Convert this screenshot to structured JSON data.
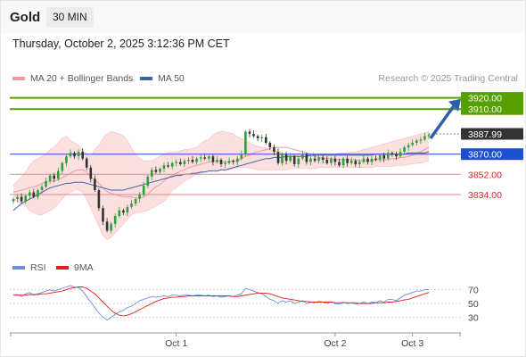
{
  "header": {
    "instrument": "Gold",
    "timeframe": "30 MIN",
    "datetime": "Thursday, October 2, 2025 3:12:36 PM CET"
  },
  "legend": {
    "ma20": "MA 20 + Bollinger Bands",
    "ma50": "MA 50",
    "rsi": "RSI",
    "ma9": "9MA"
  },
  "credit": "Research © 2025 Trading Central",
  "colors": {
    "up_candle": "#2e9e3e",
    "down_candle": "#333333",
    "bollinger_fill": "#fcd9d9",
    "ma20": "#f19a9a",
    "ma50": "#3a63a8",
    "resistance": "#55a000",
    "pivot": "#1f4fd1",
    "support": "#e08a8a",
    "support_text": "#e02020",
    "current_price_bg": "#333333",
    "arrow": "#2e5fa8",
    "rsi": "#6d8fd6",
    "rsi_ma9": "#e02020"
  },
  "chart_data": [
    {
      "type": "candlestick",
      "x_tick_labels": [
        "Oct 1",
        "Oct 2",
        "Oct 3"
      ],
      "y_range": [
        3792,
        3930
      ],
      "current_price": "3887.99",
      "levels": [
        {
          "label": "3920.00",
          "value": 3920.0,
          "kind": "resistance"
        },
        {
          "label": "3910.00",
          "value": 3910.0,
          "kind": "resistance"
        },
        {
          "label": "3870.00",
          "value": 3870.0,
          "kind": "pivot"
        },
        {
          "label": "3852.00",
          "value": 3852.0,
          "kind": "support"
        },
        {
          "label": "3834.00",
          "value": 3834.0,
          "kind": "support"
        }
      ],
      "close": [
        3830,
        3832,
        3828,
        3833,
        3836,
        3832,
        3838,
        3841,
        3846,
        3851,
        3848,
        3855,
        3862,
        3868,
        3871,
        3868,
        3872,
        3866,
        3858,
        3848,
        3838,
        3822,
        3810,
        3802,
        3808,
        3815,
        3820,
        3818,
        3823,
        3826,
        3830,
        3834,
        3842,
        3850,
        3856,
        3854,
        3857,
        3860,
        3859,
        3862,
        3863,
        3861,
        3864,
        3865,
        3863,
        3866,
        3867,
        3866,
        3868,
        3863,
        3865,
        3861,
        3862,
        3864,
        3863,
        3866,
        3870,
        3890,
        3888,
        3886,
        3884,
        3885,
        3880,
        3876,
        3872,
        3862,
        3870,
        3864,
        3868,
        3861,
        3866,
        3870,
        3863,
        3866,
        3864,
        3867,
        3865,
        3862,
        3866,
        3863,
        3860,
        3866,
        3862,
        3864,
        3861,
        3863,
        3866,
        3863,
        3866,
        3865,
        3869,
        3866,
        3871,
        3870,
        3868,
        3872,
        3876,
        3878,
        3880,
        3882,
        3883,
        3886,
        3887
      ],
      "ma20": [
        3836,
        3837,
        3838,
        3839,
        3840,
        3841,
        3842,
        3844,
        3845,
        3846,
        3846,
        3847,
        3849,
        3851,
        3853,
        3855,
        3856,
        3856,
        3854,
        3850,
        3847,
        3844,
        3840,
        3837,
        3835,
        3834,
        3833,
        3832,
        3832,
        3832,
        3831,
        3831,
        3832,
        3834,
        3838,
        3841,
        3843,
        3846,
        3849,
        3851,
        3853,
        3855,
        3856,
        3858,
        3859,
        3860,
        3861,
        3862,
        3863,
        3863,
        3864,
        3863,
        3863,
        3863,
        3864,
        3864,
        3866,
        3868,
        3869,
        3871,
        3872,
        3873,
        3874,
        3875,
        3876,
        3876,
        3876,
        3876,
        3875,
        3874,
        3873,
        3872,
        3871,
        3869,
        3868,
        3867,
        3866,
        3866,
        3866,
        3865,
        3865,
        3865,
        3865,
        3865,
        3865,
        3864,
        3864,
        3864,
        3864,
        3865,
        3865,
        3865,
        3865,
        3866,
        3866,
        3867,
        3867,
        3868,
        3869,
        3871,
        3872,
        3874,
        3876
      ],
      "bb_upper": [
        3842,
        3846,
        3850,
        3854,
        3860,
        3864,
        3866,
        3868,
        3870,
        3874,
        3876,
        3880,
        3884,
        3886,
        3882,
        3880,
        3878,
        3874,
        3870,
        3868,
        3874,
        3878,
        3884,
        3888,
        3890,
        3889,
        3888,
        3886,
        3882,
        3876,
        3870,
        3866,
        3864,
        3864,
        3864,
        3866,
        3868,
        3870,
        3871,
        3872,
        3872,
        3873,
        3874,
        3874,
        3875,
        3876,
        3879,
        3882,
        3883,
        3887,
        3889,
        3890,
        3890,
        3889,
        3888,
        3885,
        3884,
        3882,
        3880,
        3878,
        3877,
        3876,
        3875,
        3874,
        3873,
        3872,
        3871,
        3870,
        3870,
        3869,
        3869,
        3869,
        3869,
        3869,
        3870,
        3870,
        3870,
        3870,
        3870,
        3870,
        3871,
        3871,
        3871,
        3872,
        3872,
        3873,
        3874,
        3875,
        3876,
        3877,
        3878,
        3879,
        3880,
        3881,
        3882,
        3883,
        3884,
        3885,
        3886,
        3887,
        3888,
        3889,
        3890
      ],
      "bb_lower": [
        3830,
        3828,
        3826,
        3824,
        3820,
        3818,
        3816,
        3816,
        3818,
        3820,
        3822,
        3826,
        3830,
        3834,
        3836,
        3838,
        3838,
        3836,
        3830,
        3822,
        3814,
        3806,
        3798,
        3794,
        3796,
        3800,
        3804,
        3808,
        3812,
        3816,
        3818,
        3818,
        3819,
        3820,
        3822,
        3824,
        3826,
        3828,
        3832,
        3838,
        3840,
        3843,
        3846,
        3848,
        3850,
        3852,
        3853,
        3854,
        3855,
        3856,
        3856,
        3856,
        3855,
        3856,
        3857,
        3858,
        3858,
        3858,
        3857,
        3857,
        3856,
        3856,
        3856,
        3856,
        3856,
        3856,
        3856,
        3856,
        3857,
        3857,
        3857,
        3857,
        3857,
        3857,
        3857,
        3858,
        3858,
        3858,
        3858,
        3858,
        3858,
        3858,
        3858,
        3858,
        3858,
        3858,
        3858,
        3858,
        3858,
        3859,
        3859,
        3859,
        3859,
        3859,
        3860,
        3860,
        3860,
        3861,
        3861,
        3862,
        3862,
        3863,
        3864
      ],
      "ma50": [
        3820,
        3823,
        3826,
        3828,
        3830,
        3832,
        3834,
        3836,
        3838,
        3840,
        3841,
        3842,
        3843,
        3844,
        3844,
        3845,
        3845,
        3845,
        3844,
        3843,
        3842,
        3841,
        3840,
        3839,
        3838,
        3838,
        3838,
        3838,
        3839,
        3840,
        3841,
        3842,
        3843,
        3844,
        3845,
        3846,
        3847,
        3848,
        3849,
        3850,
        3851,
        3851,
        3852,
        3852,
        3853,
        3853,
        3854,
        3854,
        3855,
        3855,
        3855,
        3856,
        3856,
        3857,
        3858,
        3859,
        3860,
        3861,
        3862,
        3863,
        3864,
        3865,
        3866,
        3866,
        3867,
        3867,
        3867,
        3868,
        3868,
        3868,
        3868,
        3868,
        3868,
        3869,
        3869,
        3869,
        3869,
        3869,
        3869,
        3869,
        3869,
        3869,
        3869,
        3869,
        3869,
        3869,
        3869,
        3869,
        3869,
        3870,
        3870,
        3870,
        3870,
        3870,
        3870,
        3870,
        3870,
        3871,
        3871,
        3871,
        3871,
        3871,
        3872
      ]
    },
    {
      "type": "line",
      "name": "RSI",
      "y_range": [
        15,
        85
      ],
      "y_tick_labels": [
        "70",
        "50",
        "30"
      ],
      "rsi": [
        62,
        63,
        60,
        64,
        66,
        62,
        64,
        66,
        68,
        70,
        68,
        70,
        72,
        74,
        76,
        74,
        73,
        68,
        60,
        52,
        44,
        36,
        30,
        26,
        30,
        34,
        38,
        40,
        44,
        46,
        50,
        54,
        56,
        58,
        60,
        59,
        60,
        61,
        60,
        62,
        62,
        61,
        62,
        62,
        61,
        62,
        62,
        61,
        62,
        60,
        61,
        59,
        60,
        61,
        60,
        62,
        64,
        72,
        70,
        68,
        66,
        64,
        60,
        56,
        54,
        50,
        54,
        52,
        54,
        50,
        52,
        54,
        50,
        52,
        51,
        53,
        52,
        50,
        52,
        50,
        49,
        52,
        50,
        51,
        49,
        50,
        52,
        50,
        52,
        51,
        54,
        52,
        56,
        56,
        54,
        58,
        62,
        64,
        66,
        68,
        68,
        70,
        70
      ],
      "rsi_ma9": [
        62,
        62,
        62,
        62,
        63,
        63,
        63,
        64,
        64,
        65,
        66,
        67,
        68,
        70,
        72,
        73,
        74,
        74,
        72,
        68,
        64,
        58,
        52,
        46,
        40,
        36,
        33,
        32,
        33,
        35,
        38,
        41,
        44,
        47,
        50,
        53,
        55,
        57,
        58,
        59,
        59,
        60,
        60,
        61,
        61,
        61,
        61,
        61,
        61,
        61,
        61,
        61,
        61,
        61,
        60,
        60,
        61,
        62,
        63,
        64,
        65,
        65,
        65,
        64,
        62,
        60,
        58,
        57,
        56,
        55,
        54,
        53,
        53,
        52,
        52,
        52,
        52,
        52,
        52,
        51,
        51,
        51,
        51,
        51,
        51,
        50,
        50,
        50,
        50,
        51,
        51,
        51,
        52,
        52,
        53,
        54,
        55,
        56,
        58,
        60,
        62,
        64,
        66
      ]
    }
  ],
  "price_scale": {
    "y_range": [
      3792,
      3930
    ]
  }
}
